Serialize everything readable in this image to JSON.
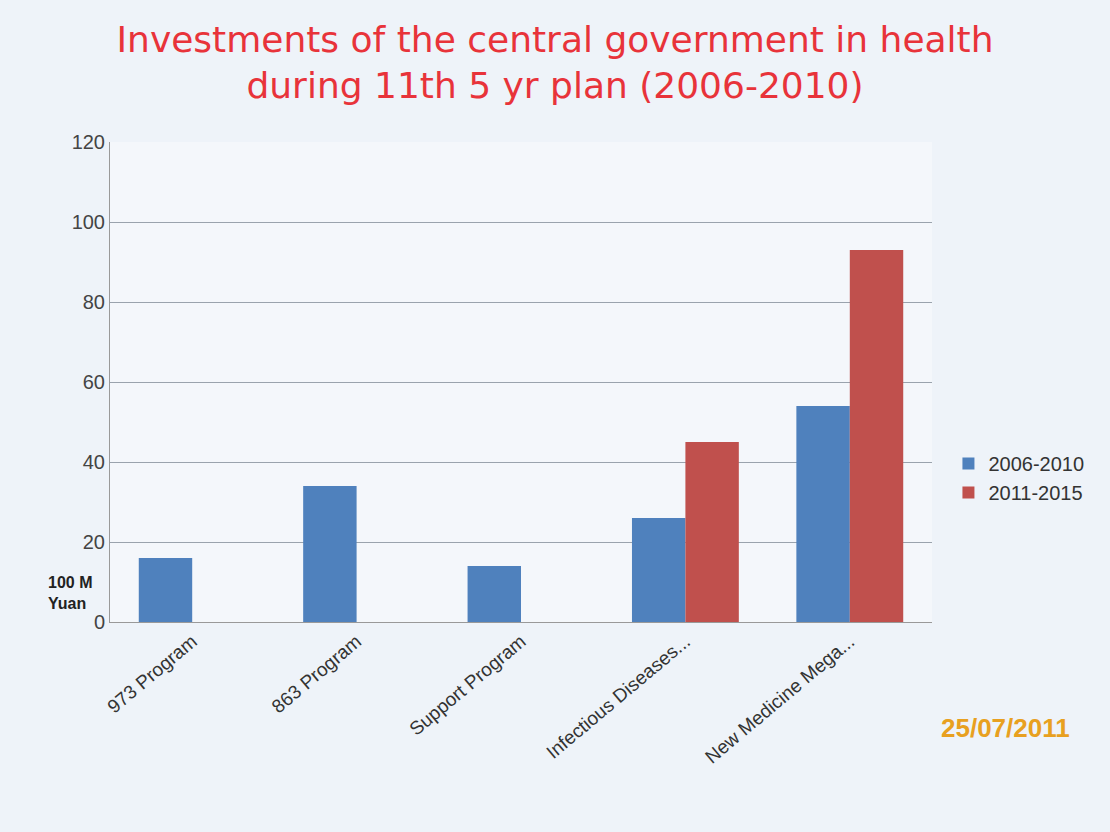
{
  "chart_data": {
    "type": "bar",
    "title": "Investments of the central government in health during 11th 5 yr plan (2006-2010)",
    "ylabel": "100 M Yuan",
    "categories": [
      "973 Program",
      "863 Program",
      "Support Program",
      "Infectious Diseases...",
      "New Medicine Mega..."
    ],
    "series": [
      {
        "name": "2006-2010",
        "color": "#4f81bd",
        "values": [
          16,
          34,
          14,
          26,
          54
        ]
      },
      {
        "name": "2011-2015",
        "color": "#c0504d",
        "values": [
          null,
          null,
          null,
          45,
          93
        ]
      }
    ],
    "ylim": [
      0,
      120
    ],
    "yticks": [
      0,
      20,
      40,
      60,
      80,
      100,
      120
    ],
    "grid": true,
    "legend": "right",
    "annotations": [
      "25/07/2011"
    ]
  }
}
